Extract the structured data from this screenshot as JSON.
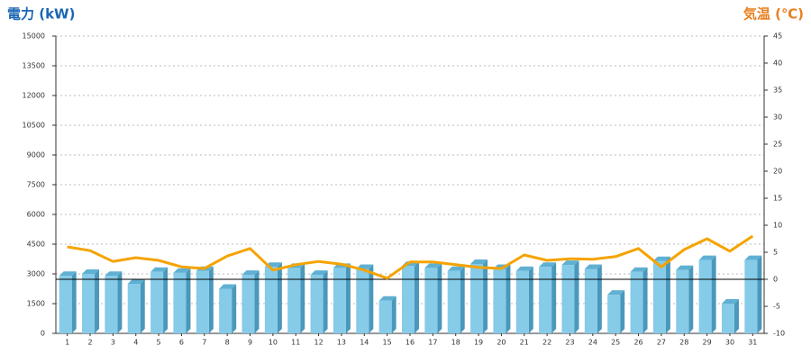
{
  "chart_data": {
    "type": "bar_line",
    "y_title": "電力 (kW)",
    "y2_title": "気温 (℃)",
    "categories": [
      "1",
      "2",
      "3",
      "4",
      "5",
      "6",
      "7",
      "8",
      "9",
      "10",
      "11",
      "12",
      "13",
      "14",
      "15",
      "16",
      "17",
      "18",
      "19",
      "20",
      "21",
      "22",
      "23",
      "24",
      "25",
      "26",
      "27",
      "28",
      "29",
      "30",
      "31"
    ],
    "series": [
      {
        "type": "bar",
        "color": "#86cbe8",
        "values": [
          2900,
          3000,
          2900,
          2500,
          3100,
          3050,
          3150,
          2250,
          2950,
          3350,
          3300,
          2950,
          3300,
          3250,
          1650,
          3400,
          3300,
          3150,
          3500,
          3250,
          3150,
          3350,
          3450,
          3250,
          1950,
          3100,
          3650,
          3200,
          3700,
          1500,
          3700
        ]
      },
      {
        "type": "line",
        "axis": "y2",
        "color": "#f5a300",
        "values": [
          6.0,
          5.3,
          3.3,
          4.0,
          3.5,
          2.3,
          2.0,
          4.3,
          5.7,
          1.7,
          2.7,
          3.3,
          2.8,
          1.7,
          0.2,
          3.2,
          3.2,
          2.7,
          2.2,
          2.0,
          4.5,
          3.5,
          3.8,
          3.7,
          4.2,
          5.7,
          2.3,
          5.5,
          7.5,
          5.2,
          8.0
        ]
      }
    ],
    "ylim": [
      0,
      15000
    ],
    "yticks": [
      0,
      1500,
      3000,
      4500,
      6000,
      7500,
      9000,
      10500,
      12000,
      13500,
      15000
    ],
    "y2lim": [
      -10,
      45
    ],
    "y2ticks": [
      -10,
      -5,
      0,
      5,
      10,
      15,
      20,
      25,
      30,
      35,
      40,
      45
    ],
    "grid": true,
    "y2_zero_line": true
  }
}
